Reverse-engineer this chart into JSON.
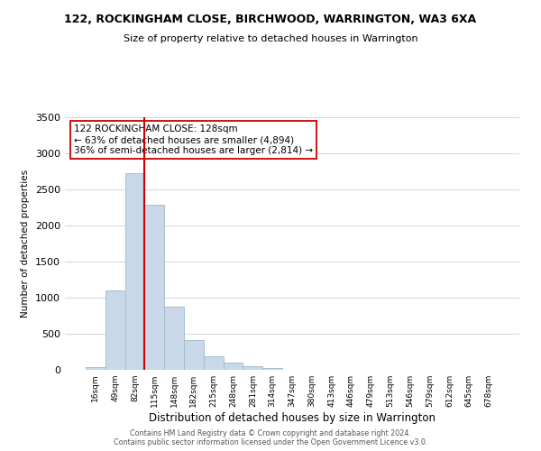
{
  "title": "122, ROCKINGHAM CLOSE, BIRCHWOOD, WARRINGTON, WA3 6XA",
  "subtitle": "Size of property relative to detached houses in Warrington",
  "xlabel": "Distribution of detached houses by size in Warrington",
  "ylabel": "Number of detached properties",
  "bar_color": "#c8d8e8",
  "bar_edge_color": "#a0b8cc",
  "vline_color": "#cc0000",
  "annotation_text": "122 ROCKINGHAM CLOSE: 128sqm\n← 63% of detached houses are smaller (4,894)\n36% of semi-detached houses are larger (2,814) →",
  "annotation_box_color": "#ffffff",
  "annotation_box_edge": "#cc0000",
  "categories": [
    "16sqm",
    "49sqm",
    "82sqm",
    "115sqm",
    "148sqm",
    "182sqm",
    "215sqm",
    "248sqm",
    "281sqm",
    "314sqm",
    "347sqm",
    "380sqm",
    "413sqm",
    "446sqm",
    "479sqm",
    "513sqm",
    "546sqm",
    "579sqm",
    "612sqm",
    "645sqm",
    "678sqm"
  ],
  "values": [
    40,
    1100,
    2720,
    2290,
    880,
    415,
    185,
    95,
    55,
    20,
    5,
    0,
    0,
    0,
    0,
    0,
    0,
    0,
    0,
    0,
    0
  ],
  "ylim": [
    0,
    3500
  ],
  "yticks": [
    0,
    500,
    1000,
    1500,
    2000,
    2500,
    3000,
    3500
  ],
  "footer_line1": "Contains HM Land Registry data © Crown copyright and database right 2024.",
  "footer_line2": "Contains public sector information licensed under the Open Government Licence v3.0.",
  "bg_color": "#ffffff",
  "grid_color": "#ccd8e4",
  "vline_index": 3
}
